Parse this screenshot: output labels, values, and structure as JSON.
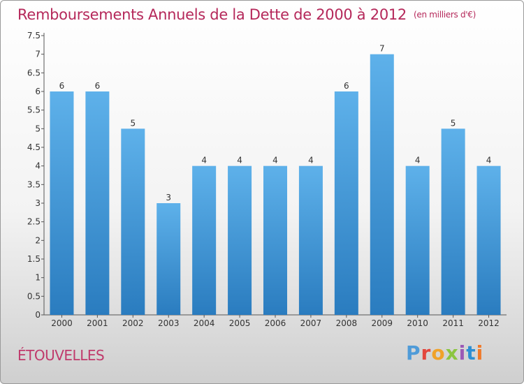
{
  "title": "Remboursements Annuels de la Dette de 2000 à 2012",
  "unit_note": "(en milliers d'€)",
  "commune": "ÉTOUVELLES",
  "logo": {
    "text": "Proxiti",
    "letter_colors": [
      "#4f9bd8",
      "#e3463c",
      "#f0a22a",
      "#8bc53f",
      "#9b59b6",
      "#2e8fd3",
      "#f07a2a"
    ]
  },
  "colors": {
    "bar_light": "#5eb1ea",
    "bar_dark": "#2a7cbf",
    "title": "#b5285a"
  },
  "chart_data": {
    "type": "bar",
    "categories": [
      "2000",
      "2001",
      "2002",
      "2003",
      "2004",
      "2005",
      "2006",
      "2007",
      "2008",
      "2009",
      "2010",
      "2011",
      "2012"
    ],
    "values": [
      6,
      6,
      5,
      3,
      4,
      4,
      4,
      4,
      6,
      7,
      4,
      5,
      4
    ],
    "data_labels": [
      "6",
      "6",
      "5",
      "3",
      "4",
      "4",
      "4",
      "4",
      "6",
      "7",
      "4",
      "5",
      "4"
    ],
    "title": "Remboursements Annuels de la Dette de 2000 à 2012",
    "ylim": [
      0,
      7.5
    ],
    "yticks": [
      "0",
      "0.5",
      "1",
      "1.5",
      "2",
      "2.5",
      "3",
      "3.5",
      "4",
      "4.5",
      "5",
      "5.5",
      "6",
      "6.5",
      "7",
      "7.5"
    ],
    "grid": false,
    "legend": "none"
  }
}
